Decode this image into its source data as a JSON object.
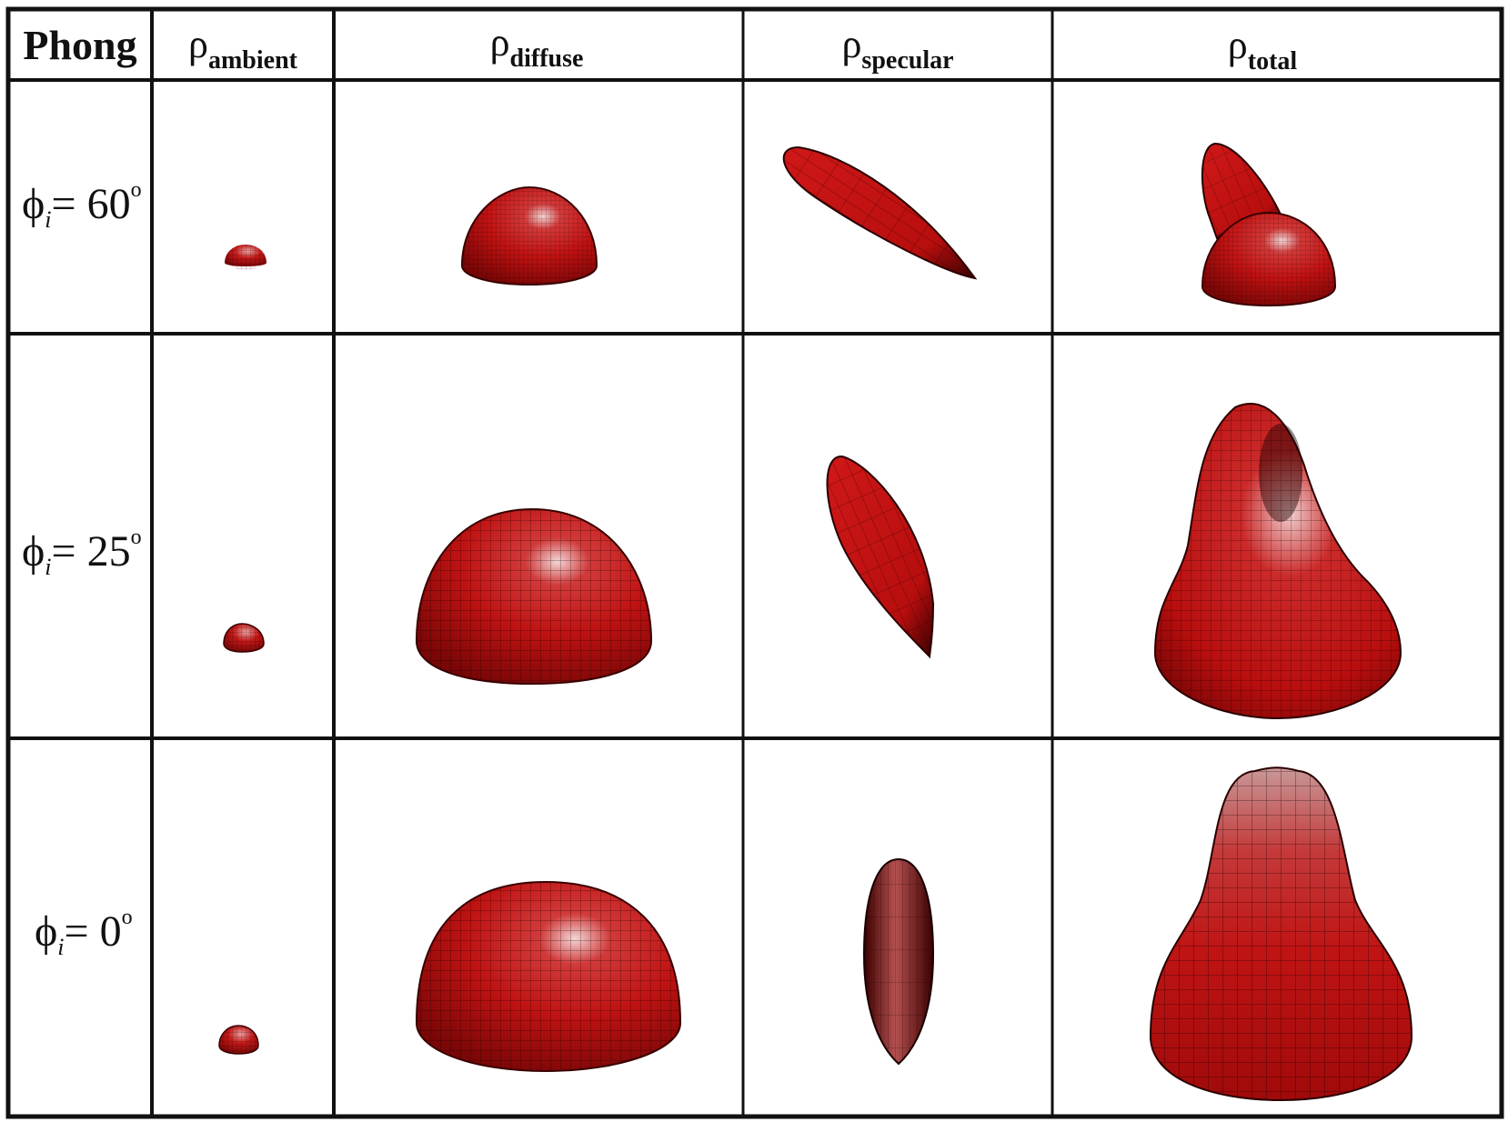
{
  "table": {
    "corner_label": "Phong",
    "columns": [
      {
        "symbol": "ρ",
        "subscript": "ambient"
      },
      {
        "symbol": "ρ",
        "subscript": "diffuse"
      },
      {
        "symbol": "ρ",
        "subscript": "specular"
      },
      {
        "symbol": "ρ",
        "subscript": "total"
      }
    ],
    "rows": [
      {
        "symbol": "ϕ",
        "subscript": "i",
        "equals": "= 60",
        "degree": "o"
      },
      {
        "symbol": "ϕ",
        "subscript": "i",
        "equals": "= 25",
        "degree": "o"
      },
      {
        "symbol": "ϕ",
        "subscript": "i",
        "equals": "= 0",
        "degree": "o"
      }
    ]
  },
  "colors": {
    "lobe_red": "#c81414",
    "lobe_dark": "#4a0000",
    "mesh_line": "#1a0000",
    "highlight": "#f4d8d8",
    "grid_line": "#111111"
  }
}
